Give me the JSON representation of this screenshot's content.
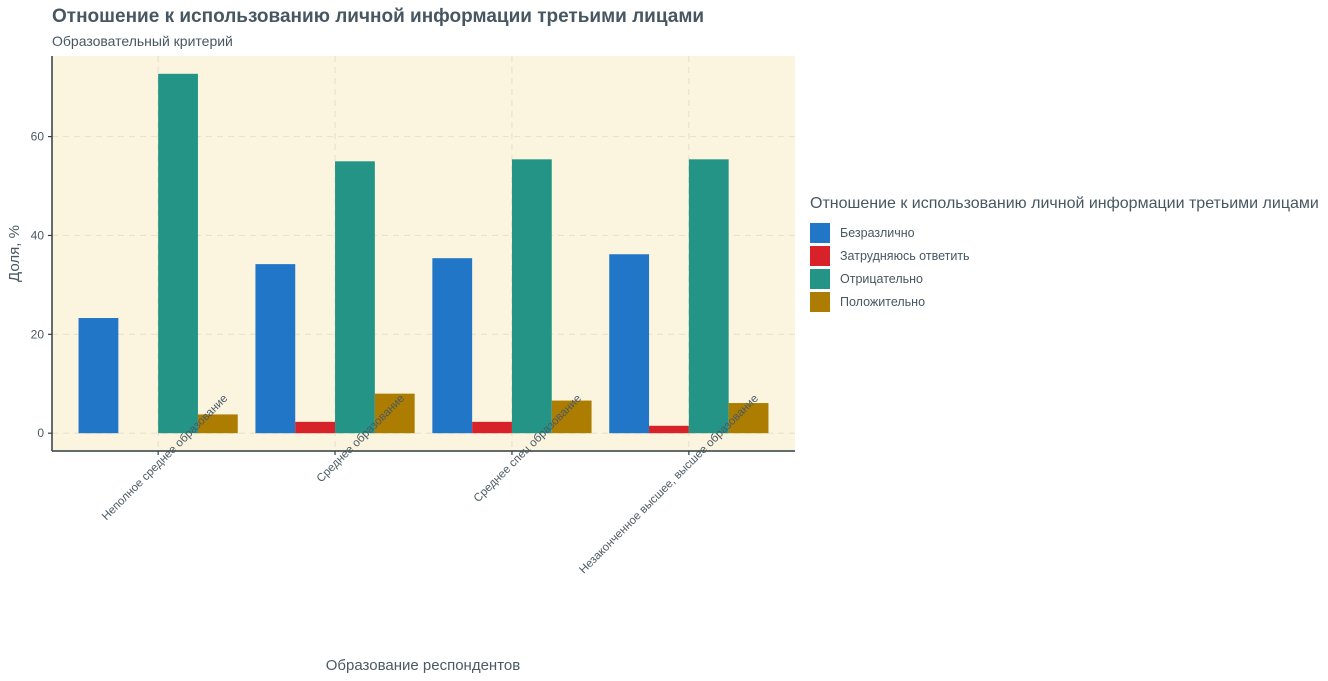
{
  "chart_data": {
    "type": "bar",
    "title": "Отношение к использованию личной информации третьими лицами",
    "subtitle": "Образовательный критерий",
    "xlabel": "Образование респондентов",
    "ylabel": "Доля, %",
    "categories": [
      "Неполное среднее образование",
      "Среднее образование",
      "Среднее спец образование",
      "Незаконченное высшее, высшее образование"
    ],
    "series": [
      {
        "name": "Безразлично",
        "color": "#2176c7",
        "values": [
          23.3,
          34.2,
          35.4,
          36.2
        ]
      },
      {
        "name": "Затрудняюсь ответить",
        "color": "#d62228",
        "values": [
          0,
          2.3,
          2.3,
          1.5
        ]
      },
      {
        "name": "Отрицательно",
        "color": "#239485",
        "values": [
          72.7,
          55.0,
          55.4,
          55.4
        ]
      },
      {
        "name": "Положительно",
        "color": "#ac7d01",
        "values": [
          3.8,
          8.0,
          6.6,
          6.1
        ]
      }
    ],
    "yticks": [
      0,
      20,
      40,
      60
    ],
    "ylim": [
      -3.6,
      76.3
    ],
    "legend_title": "Отношение к использованию личной информации третьими лицами",
    "legend_position": "right",
    "grid": true,
    "panel_background": "#fbf4df"
  }
}
